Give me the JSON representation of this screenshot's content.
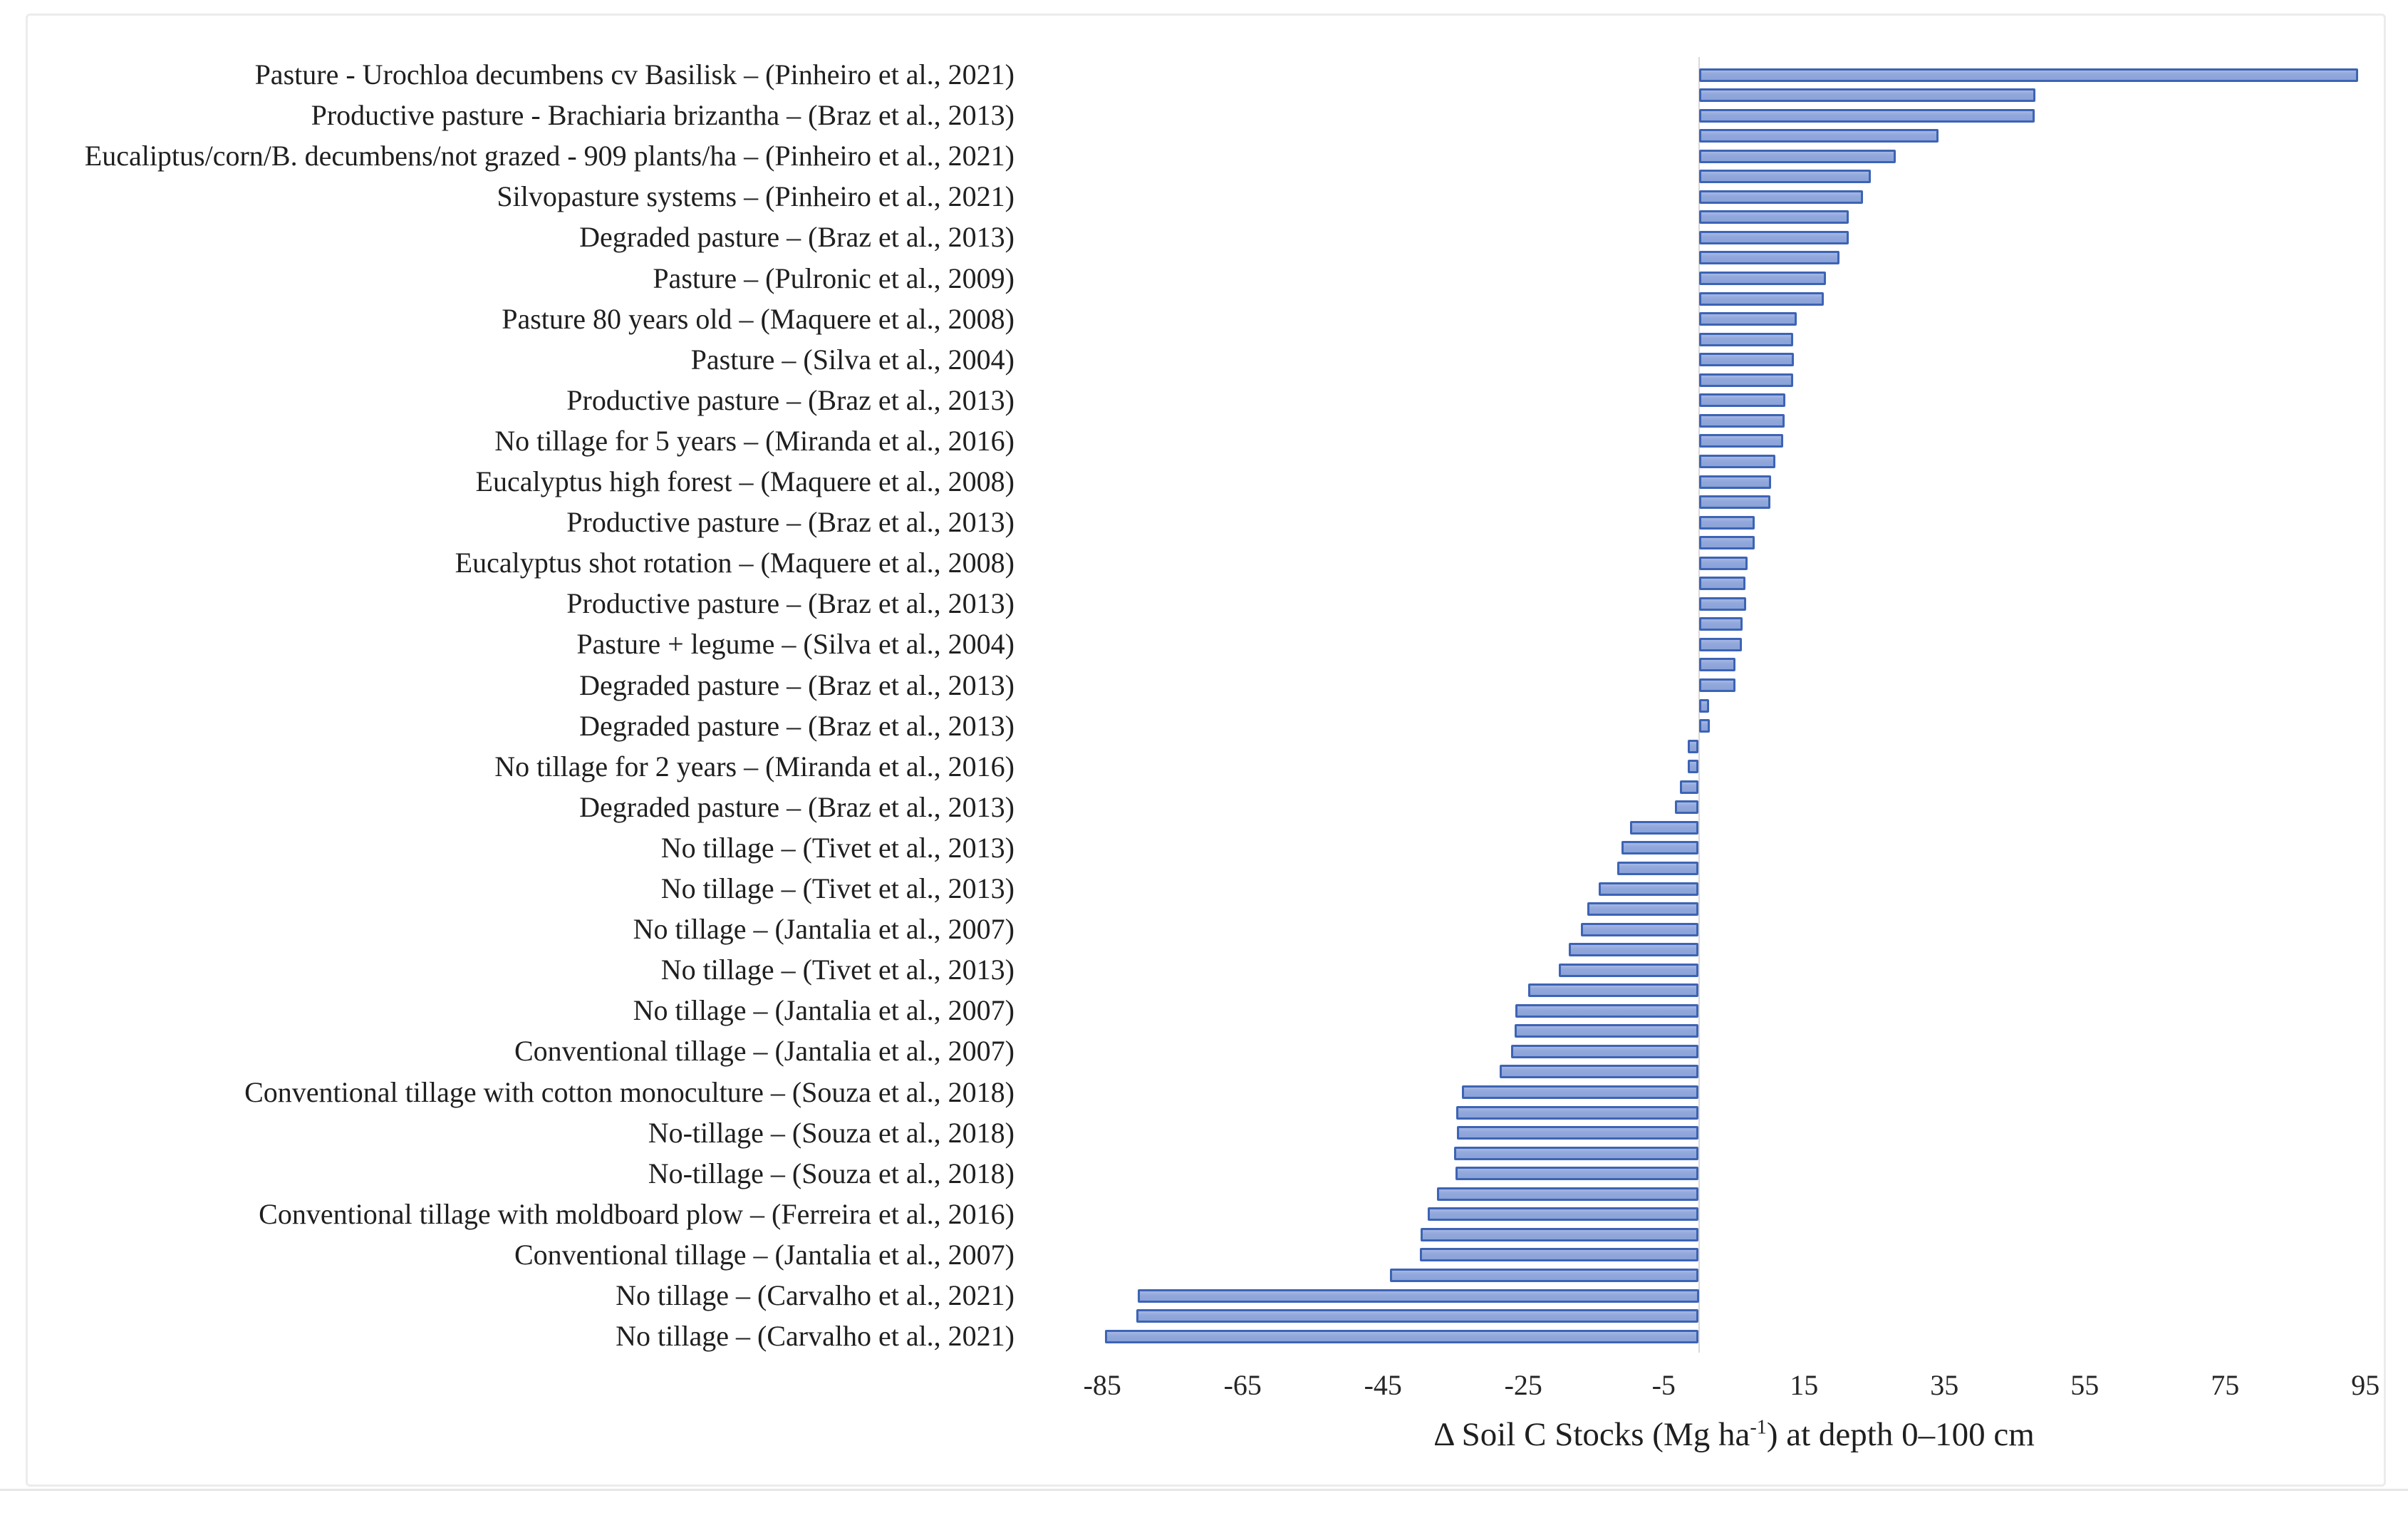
{
  "page": {
    "background": "#ffffff",
    "frame_border_color": "#ececec",
    "divider_color": "#e6e6e6"
  },
  "chart_data": {
    "type": "bar",
    "orientation": "horizontal",
    "title": "",
    "xlabel_pre": "Δ Soil C Stocks (Mg ha",
    "xlabel_sup": "-1",
    "xlabel_post": ") at depth 0–100 cm",
    "x_ticks": [
      -85,
      -65,
      -45,
      -25,
      -5,
      15,
      35,
      55,
      75,
      95
    ],
    "xlim": [
      -95,
      105
    ],
    "grid": false,
    "legend": false,
    "label_interval": 2,
    "bar_fill": "#92a8dc",
    "bar_border": "#3d64b4",
    "zero_axis_color": "#d9d9d9",
    "rows": [
      {
        "label": "Pasture - Urochloa decumbens cv Basilisk – (Pinheiro et al., 2021)",
        "value": 94.0
      },
      {
        "label": "",
        "value": 48.0
      },
      {
        "label": "Productive pasture - Brachiaria brizantha – (Braz et al., 2013)",
        "value": 47.9
      },
      {
        "label": "",
        "value": 34.2
      },
      {
        "label": "Eucaliptus/corn/B. decumbens/not grazed - 909 plants/ha – (Pinheiro et al., 2021)",
        "value": 28.1
      },
      {
        "label": "",
        "value": 24.5
      },
      {
        "label": "Silvopasture systems – (Pinheiro et al., 2021)",
        "value": 23.4
      },
      {
        "label": "",
        "value": 21.4
      },
      {
        "label": "Degraded pasture – (Braz et al., 2013)",
        "value": 21.4
      },
      {
        "label": "",
        "value": 20.1
      },
      {
        "label": "Pasture – (Pulronic et al., 2009)",
        "value": 18.1
      },
      {
        "label": "",
        "value": 17.8
      },
      {
        "label": "Pasture 80 years old – (Maquere et al., 2008)",
        "value": 14.0
      },
      {
        "label": "",
        "value": 13.5
      },
      {
        "label": "Pasture – (Silva et al., 2004)",
        "value": 13.6
      },
      {
        "label": "",
        "value": 13.5
      },
      {
        "label": "Productive pasture – (Braz et al., 2013)",
        "value": 12.3
      },
      {
        "label": "",
        "value": 12.2
      },
      {
        "label": "No tillage for 5 years – (Miranda et al., 2016)",
        "value": 12.0
      },
      {
        "label": "",
        "value": 10.9
      },
      {
        "label": "Eucalyptus high forest – (Maquere et al., 2008)",
        "value": 10.3
      },
      {
        "label": "",
        "value": 10.2
      },
      {
        "label": "Productive pasture – (Braz et al., 2013)",
        "value": 8.0
      },
      {
        "label": "",
        "value": 8.0
      },
      {
        "label": "Eucalyptus shot rotation – (Maquere et al., 2008)",
        "value": 7.0
      },
      {
        "label": "",
        "value": 6.7
      },
      {
        "label": "Productive pasture – (Braz et al., 2013)",
        "value": 6.8
      },
      {
        "label": "",
        "value": 6.2
      },
      {
        "label": "Pasture + legume – (Silva et al., 2004)",
        "value": 6.1
      },
      {
        "label": "",
        "value": 5.2
      },
      {
        "label": "Degraded pasture – (Braz et al., 2013)",
        "value": 5.2
      },
      {
        "label": "",
        "value": 1.5
      },
      {
        "label": "Degraded pasture – (Braz et al., 2013)",
        "value": 1.6
      },
      {
        "label": "",
        "value": -1.6
      },
      {
        "label": "No tillage for 2 years – (Miranda et al., 2016)",
        "value": -1.6
      },
      {
        "label": "",
        "value": -2.7
      },
      {
        "label": "Degraded pasture – (Braz et al., 2013)",
        "value": -3.4
      },
      {
        "label": "",
        "value": -9.8
      },
      {
        "label": "No tillage – (Tivet et al., 2013)",
        "value": -11.0
      },
      {
        "label": "",
        "value": -11.6
      },
      {
        "label": "No tillage – (Tivet et al., 2013)",
        "value": -14.3
      },
      {
        "label": "",
        "value": -15.9
      },
      {
        "label": "No tillage – (Jantalia et al., 2007)",
        "value": -16.8
      },
      {
        "label": "",
        "value": -18.5
      },
      {
        "label": "No tillage – (Tivet et al., 2013)",
        "value": -19.9
      },
      {
        "label": "",
        "value": -24.3
      },
      {
        "label": "No tillage – (Jantalia et al., 2007)",
        "value": -26.1
      },
      {
        "label": "",
        "value": -26.2
      },
      {
        "label": "Conventional tillage – (Jantalia et al., 2007)",
        "value": -26.8
      },
      {
        "label": "",
        "value": -28.4
      },
      {
        "label": "Conventional tillage with cotton monoculture – (Souza et al., 2018)",
        "value": -33.8
      },
      {
        "label": "",
        "value": -34.6
      },
      {
        "label": "No-tillage – (Souza et al., 2018)",
        "value": -34.5
      },
      {
        "label": "",
        "value": -34.9
      },
      {
        "label": "No-tillage – (Souza et al., 2018)",
        "value": -34.7
      },
      {
        "label": "",
        "value": -37.3
      },
      {
        "label": "Conventional tillage with moldboard plow – (Ferreira et al., 2016)",
        "value": -38.6
      },
      {
        "label": "",
        "value": -39.6
      },
      {
        "label": "Conventional tillage – (Jantalia et al., 2007)",
        "value": -39.7
      },
      {
        "label": "",
        "value": -44.0
      },
      {
        "label": "No tillage – (Carvalho et al., 2021)",
        "value": -80.0
      },
      {
        "label": "",
        "value": -80.2
      },
      {
        "label": "No tillage – (Carvalho et al., 2021)",
        "value": -84.6
      }
    ]
  }
}
